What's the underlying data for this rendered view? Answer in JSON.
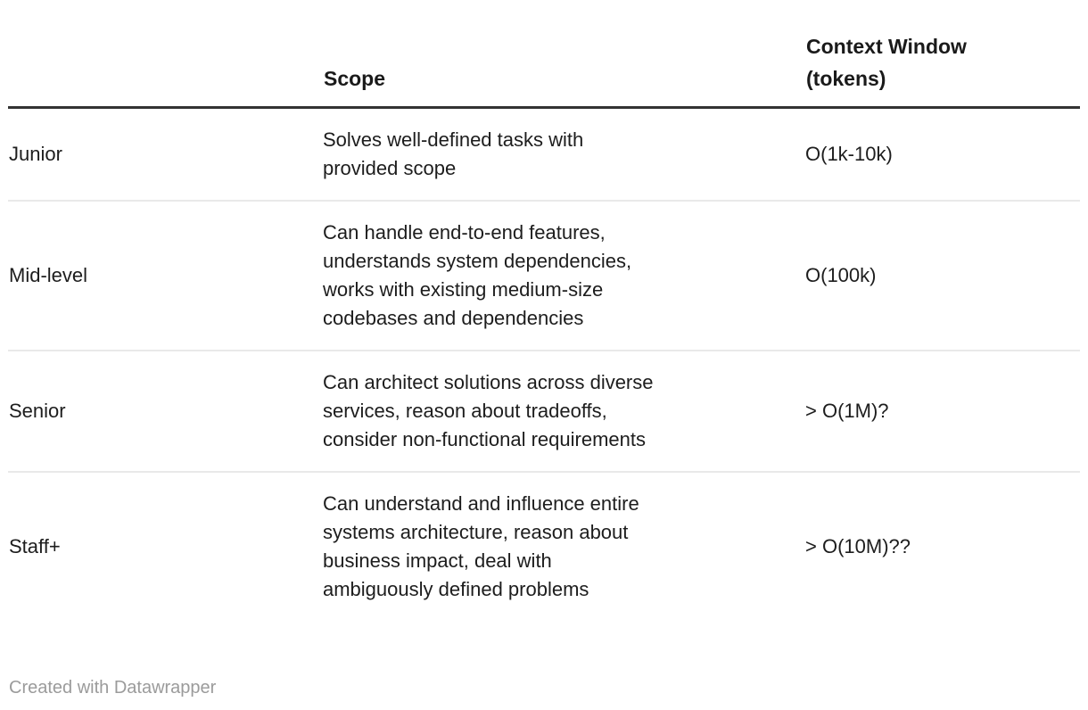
{
  "chart_data": {
    "type": "table",
    "columns": [
      "",
      "Scope",
      "Context Window\n(tokens)"
    ],
    "rows": [
      {
        "level": "Junior",
        "scope": "Solves well-defined tasks with\nprovided scope",
        "context_window": "O(1k-10k)"
      },
      {
        "level": "Mid-level",
        "scope": "Can handle end-to-end features,\nunderstands system dependencies,\nworks with existing medium-size\ncodebases and dependencies",
        "context_window": "O(100k)"
      },
      {
        "level": "Senior",
        "scope": "Can architect solutions across diverse\nservices, reason about tradeoffs,\nconsider non-functional requirements",
        "context_window": "> O(1M)?"
      },
      {
        "level": "Staff+",
        "scope": "Can understand and influence entire\nsystems architecture, reason about\nbusiness impact, deal with\nambiguously defined problems",
        "context_window": "> O(10M)??"
      }
    ],
    "title": "",
    "legend_position": "none",
    "grid": "horizontal-dividers"
  },
  "footer": {
    "credit": "Created with Datawrapper"
  },
  "colors": {
    "header_rule": "#333333",
    "row_divider": "#e9e9e9",
    "text": "#1d1d1d",
    "footer_text": "#9b9b9b",
    "background": "#ffffff"
  }
}
